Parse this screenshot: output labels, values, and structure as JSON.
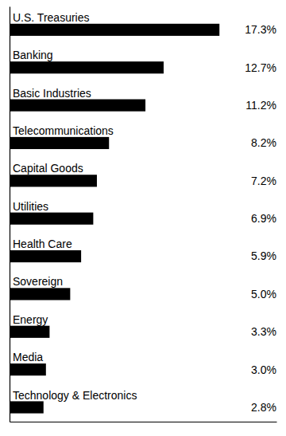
{
  "chart_data": {
    "type": "bar",
    "orientation": "horizontal",
    "categories": [
      "U.S. Treasuries",
      "Banking",
      "Basic Industries",
      "Telecommunications",
      "Capital Goods",
      "Utilities",
      "Health Care",
      "Sovereign",
      "Energy",
      "Media",
      "Technology & Electronics"
    ],
    "values": [
      17.3,
      12.7,
      11.2,
      8.2,
      7.2,
      6.9,
      5.9,
      5.0,
      3.3,
      3.0,
      2.8
    ],
    "value_labels": [
      "17.3%",
      "12.7%",
      "11.2%",
      "8.2%",
      "7.2%",
      "6.9%",
      "5.9%",
      "5.0%",
      "3.3%",
      "3.0%",
      "2.8%"
    ],
    "color": "#000000",
    "xlim": [
      0,
      22.0
    ],
    "grid": false,
    "tick_labels": false,
    "data_labels": true
  }
}
